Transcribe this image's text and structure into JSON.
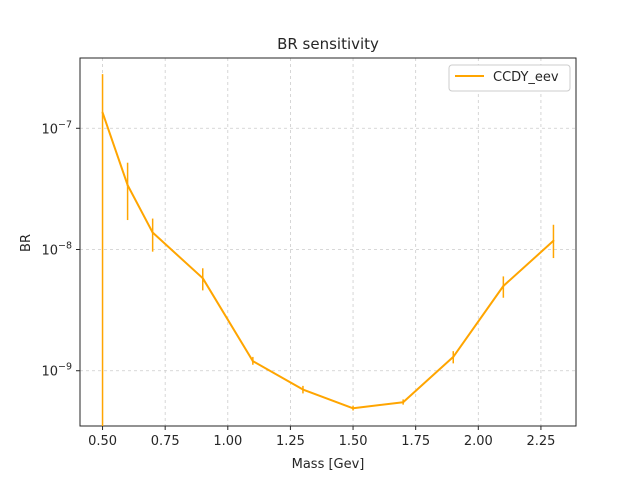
{
  "chart_data": {
    "type": "line",
    "title": "BR sensitivity",
    "xlabel": "Mass [Gev]",
    "ylabel": "BR",
    "xlim": [
      0.41,
      2.39
    ],
    "ylim": [
      3.5e-10,
      3.8e-07
    ],
    "yscale": "log",
    "grid": true,
    "legend_position": "top-right",
    "x_ticks": [
      0.5,
      0.75,
      1.0,
      1.25,
      1.5,
      1.75,
      2.0,
      2.25
    ],
    "x_tick_labels": [
      "0.50",
      "0.75",
      "1.00",
      "1.25",
      "1.50",
      "1.75",
      "2.00",
      "2.25"
    ],
    "y_ticks": [
      1e-09,
      1e-08,
      1e-07
    ],
    "y_tick_labels": [
      {
        "base": "10",
        "exp": "−9"
      },
      {
        "base": "10",
        "exp": "−8"
      },
      {
        "base": "10",
        "exp": "−7"
      }
    ],
    "series": [
      {
        "name": "CCDY_eev",
        "color": "#ffa500",
        "points": [
          {
            "x": 0.5,
            "y": 1.35e-07,
            "yerr_low": 3.5e-10,
            "yerr_high": 2.8e-07
          },
          {
            "x": 0.6,
            "y": 3.4e-08,
            "yerr_low": 1.75e-08,
            "yerr_high": 5.2e-08
          },
          {
            "x": 0.7,
            "y": 1.38e-08,
            "yerr_low": 9.6e-09,
            "yerr_high": 1.8e-08
          },
          {
            "x": 0.9,
            "y": 5.8e-09,
            "yerr_low": 4.6e-09,
            "yerr_high": 7e-09
          },
          {
            "x": 1.1,
            "y": 1.2e-09,
            "yerr_low": 1.12e-09,
            "yerr_high": 1.3e-09
          },
          {
            "x": 1.3,
            "y": 7e-10,
            "yerr_low": 6.5e-10,
            "yerr_high": 7.5e-10
          },
          {
            "x": 1.5,
            "y": 4.9e-10,
            "yerr_low": 4.7e-10,
            "yerr_high": 5.15e-10
          },
          {
            "x": 1.7,
            "y": 5.5e-10,
            "yerr_low": 5.25e-10,
            "yerr_high": 5.8e-10
          },
          {
            "x": 1.9,
            "y": 1.3e-09,
            "yerr_low": 1.15e-09,
            "yerr_high": 1.45e-09
          },
          {
            "x": 2.1,
            "y": 5e-09,
            "yerr_low": 4e-09,
            "yerr_high": 6e-09
          },
          {
            "x": 2.3,
            "y": 1.18e-08,
            "yerr_low": 8.5e-09,
            "yerr_high": 1.6e-08
          }
        ]
      }
    ]
  }
}
